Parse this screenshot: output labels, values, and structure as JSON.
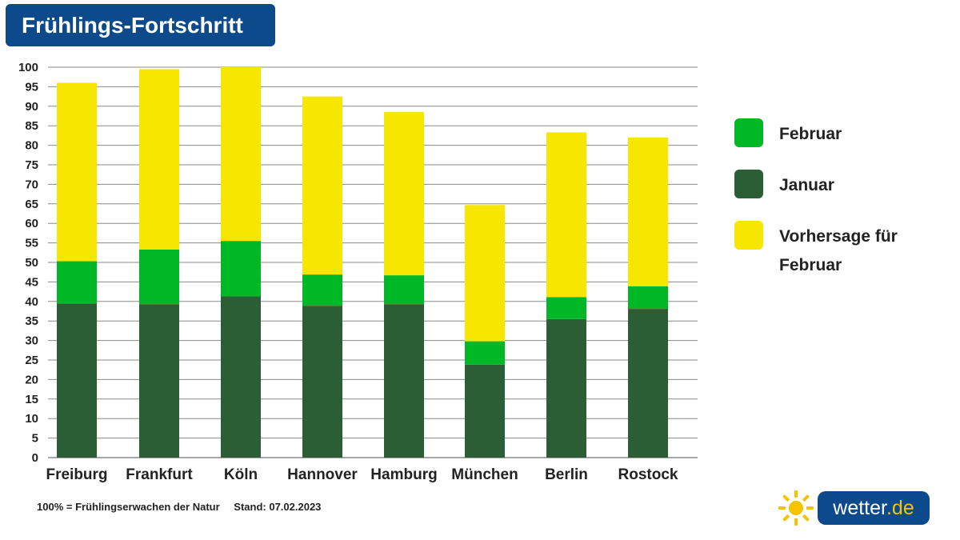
{
  "title": "Frühlings-Fortschritt",
  "footnote": {
    "definition": "100% = Frühlingserwachen der Natur",
    "date": "Stand: 07.02.2023"
  },
  "logo": {
    "name": "wetter",
    "tld": ".de"
  },
  "colors": {
    "januar": "#2c5e35",
    "februar": "#00b825",
    "vorhersage": "#f7e600",
    "title_bg": "#0d4a8c",
    "grid": "#8a8a8a"
  },
  "legend": [
    {
      "label": "Februar",
      "color": "#00b825"
    },
    {
      "label": "Januar",
      "color": "#2c5e35"
    },
    {
      "label": "Vorhersage für Februar",
      "color": "#f7e600"
    }
  ],
  "chart_data": {
    "type": "bar",
    "stacked": true,
    "categories": [
      "Freiburg",
      "Frankfurt",
      "Köln",
      "Hannover",
      "Hamburg",
      "München",
      "Berlin",
      "Rostock"
    ],
    "series": [
      {
        "name": "Januar",
        "color": "#2c5e35",
        "values": [
          39.5,
          39.3,
          41.3,
          38.9,
          39.3,
          23.8,
          35.5,
          38.1
        ]
      },
      {
        "name": "Februar",
        "color": "#00b825",
        "values": [
          10.8,
          14.0,
          14.2,
          8.0,
          7.4,
          6.0,
          5.6,
          5.8
        ]
      },
      {
        "name": "Vorhersage für Februar",
        "color": "#f7e600",
        "values": [
          45.7,
          46.2,
          44.5,
          45.6,
          41.8,
          34.9,
          42.2,
          38.1
        ]
      }
    ],
    "ylim": [
      0,
      100
    ],
    "yticks": [
      0,
      5,
      10,
      15,
      20,
      25,
      30,
      35,
      40,
      45,
      50,
      55,
      60,
      65,
      70,
      75,
      80,
      85,
      90,
      95,
      100
    ],
    "grid": true,
    "legend_position": "right"
  }
}
